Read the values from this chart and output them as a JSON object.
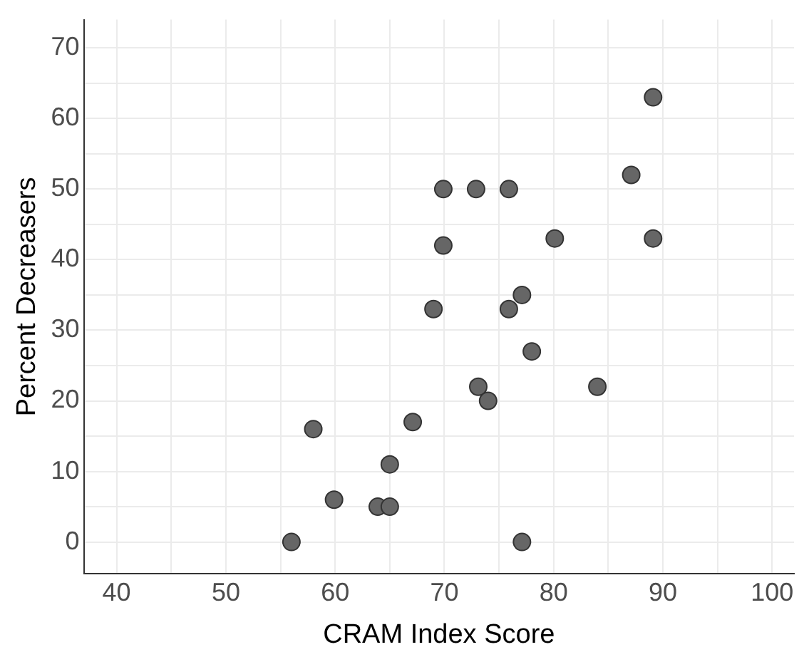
{
  "chart_data": {
    "type": "scatter",
    "xlabel": "CRAM Index Score",
    "ylabel": "Percent Decreasers",
    "x": [
      89.1,
      87.1,
      69.9,
      72.9,
      75.9,
      80.1,
      89.1,
      69.9,
      77.1,
      69.0,
      75.9,
      78.0,
      73.1,
      74.0,
      84.0,
      58.0,
      67.1,
      65.0,
      59.9,
      63.9,
      65.0,
      56.0,
      77.1
    ],
    "values": [
      63,
      52,
      50,
      50,
      50,
      43,
      43,
      42,
      35,
      33,
      33,
      27,
      22,
      20,
      22,
      16,
      17,
      11,
      6,
      5,
      5,
      0,
      0
    ],
    "color": "#666666",
    "marker": "circle",
    "grid": true,
    "xlim": [
      37,
      102
    ],
    "xticks": [
      40,
      {
        "value": 45,
        "label": null
      },
      50,
      {
        "value": 55,
        "label": null
      },
      60,
      {
        "value": 65,
        "label": null
      },
      70,
      {
        "value": 75,
        "label": null
      },
      80,
      {
        "value": 85,
        "label": null
      },
      90,
      {
        "value": 95,
        "label": null
      },
      100
    ],
    "ylim": [
      -4.5,
      74
    ],
    "yticks": [
      0,
      {
        "value": 5,
        "label": null
      },
      10,
      {
        "value": 15,
        "label": null
      },
      20,
      {
        "value": 25,
        "label": null
      },
      30,
      {
        "value": 35,
        "label": null
      },
      40,
      {
        "value": 45,
        "label": null
      },
      50,
      {
        "value": 55,
        "label": null
      },
      60,
      {
        "value": 65,
        "label": null
      },
      70
    ]
  }
}
